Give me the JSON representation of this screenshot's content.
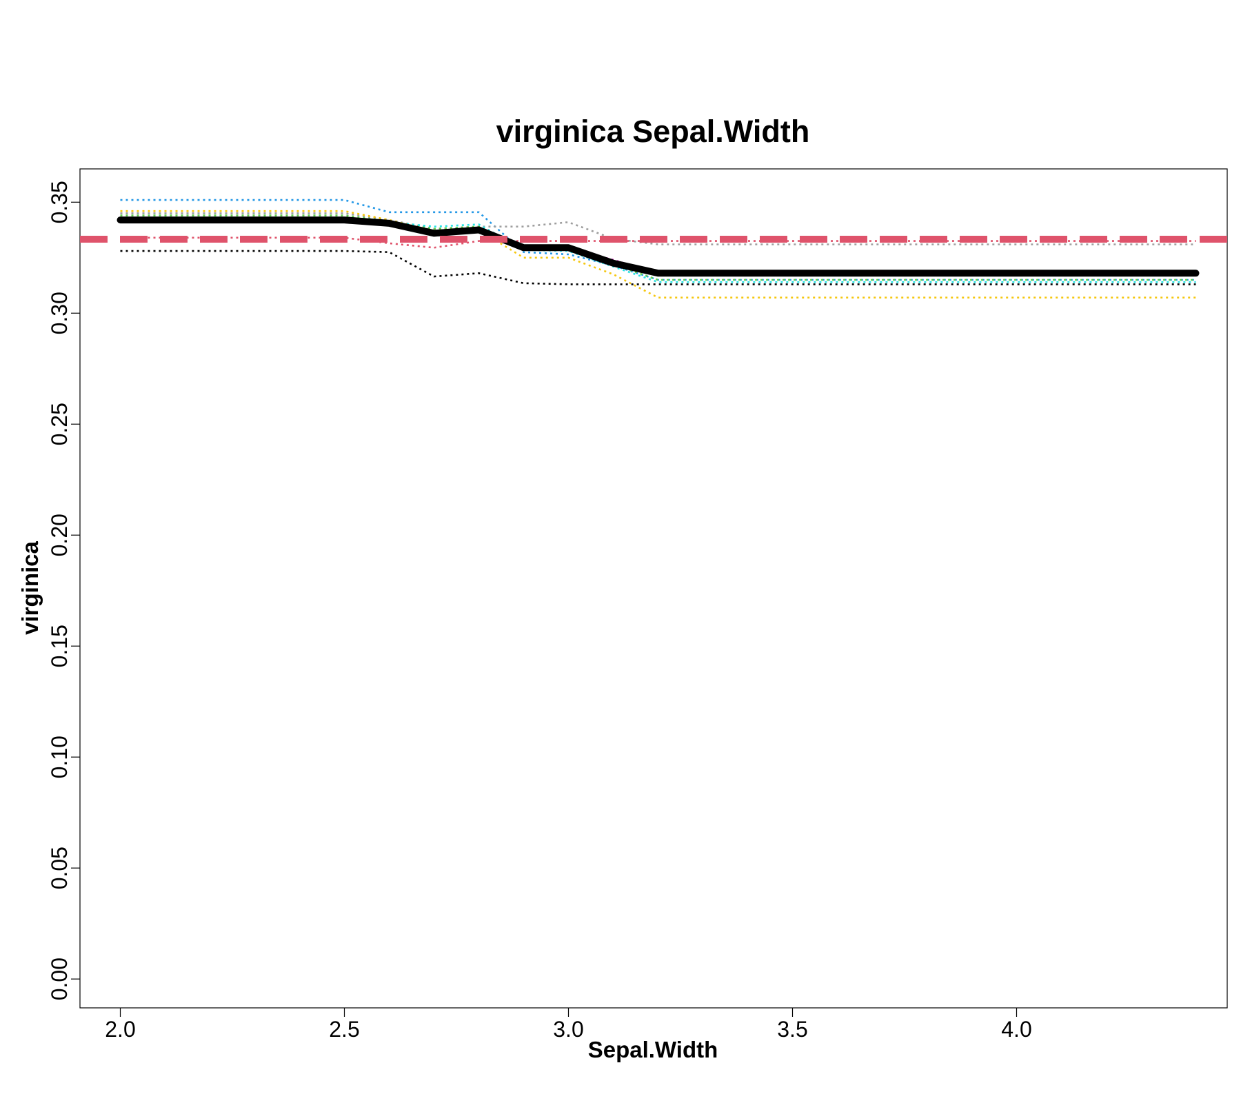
{
  "chart_data": {
    "type": "line",
    "title": "virginica  Sepal.Width",
    "xlabel": "Sepal.Width",
    "ylabel": "virginica",
    "xlim": [
      1.91,
      4.47
    ],
    "ylim": [
      -0.013,
      0.365
    ],
    "xticks": [
      {
        "value": 2.0,
        "label": "2.0"
      },
      {
        "value": 2.5,
        "label": "2.5"
      },
      {
        "value": 3.0,
        "label": "3.0"
      },
      {
        "value": 3.5,
        "label": "3.5"
      },
      {
        "value": 4.0,
        "label": "4.0"
      }
    ],
    "yticks": [
      {
        "value": 0.0,
        "label": "0.00"
      },
      {
        "value": 0.05,
        "label": "0.05"
      },
      {
        "value": 0.1,
        "label": "0.10"
      },
      {
        "value": 0.15,
        "label": "0.15"
      },
      {
        "value": 0.2,
        "label": "0.20"
      },
      {
        "value": 0.25,
        "label": "0.25"
      },
      {
        "value": 0.3,
        "label": "0.30"
      },
      {
        "value": 0.35,
        "label": "0.35"
      }
    ],
    "grid": false,
    "reference_lines": [
      {
        "y": 0.3333,
        "color": "#DF536B",
        "style": "dashed-thick"
      }
    ],
    "series": [
      {
        "color": "#2297E6",
        "style": "dotted",
        "x": [
          2.0,
          2.5,
          2.6,
          2.7,
          2.8,
          2.9,
          3.0,
          3.1,
          3.2,
          4.4
        ],
        "y": [
          0.351,
          0.351,
          0.3455,
          0.3455,
          0.3455,
          0.3275,
          0.3265,
          0.3215,
          0.315,
          0.315
        ]
      },
      {
        "color": "#9E9E9E",
        "style": "dotted",
        "x": [
          2.0,
          2.5,
          2.6,
          2.7,
          2.8,
          2.9,
          3.0,
          3.1,
          3.2,
          4.4
        ],
        "y": [
          0.345,
          0.345,
          0.342,
          0.338,
          0.339,
          0.339,
          0.341,
          0.3335,
          0.331,
          0.331
        ]
      },
      {
        "color": "#61D04F",
        "style": "dotted",
        "x": [
          2.0,
          2.5,
          2.6,
          2.7,
          2.8,
          2.9,
          3.0,
          3.1,
          3.2,
          4.4
        ],
        "y": [
          0.344,
          0.344,
          0.3415,
          0.338,
          0.339,
          0.33,
          0.329,
          0.322,
          0.315,
          0.315
        ]
      },
      {
        "color": "#F5C710",
        "style": "dotted",
        "x": [
          2.0,
          2.5,
          2.6,
          2.7,
          2.8,
          2.9,
          3.0,
          3.1,
          3.2,
          4.4
        ],
        "y": [
          0.346,
          0.346,
          0.342,
          0.337,
          0.3375,
          0.325,
          0.325,
          0.3175,
          0.307,
          0.307
        ]
      },
      {
        "color": "#28E2E5",
        "style": "dotted",
        "x": [
          2.0,
          2.5,
          2.6,
          2.7,
          2.8,
          2.9,
          3.0,
          3.1,
          3.2,
          4.4
        ],
        "y": [
          0.343,
          0.343,
          0.341,
          0.339,
          0.34,
          0.3285,
          0.328,
          0.321,
          0.314,
          0.314
        ]
      },
      {
        "color": "#CD0BBC",
        "style": "dotted",
        "x": [
          2.0,
          2.5,
          2.6,
          2.7,
          2.8,
          2.9,
          3.0,
          3.1,
          3.2,
          4.4
        ],
        "y": [
          0.342,
          0.342,
          0.3405,
          0.3365,
          0.337,
          0.33,
          0.3295,
          0.324,
          0.318,
          0.318
        ]
      },
      {
        "color": "#DF536B",
        "style": "dotted",
        "x": [
          2.0,
          2.5,
          2.6,
          2.7,
          2.8,
          2.9,
          3.0,
          3.1,
          3.2,
          4.4
        ],
        "y": [
          0.334,
          0.334,
          0.3315,
          0.3295,
          0.3325,
          0.3325,
          0.3325,
          0.3325,
          0.3325,
          0.3325
        ]
      },
      {
        "color": "#000000",
        "style": "dotted",
        "x": [
          2.0,
          2.5,
          2.6,
          2.7,
          2.8,
          2.9,
          3.0,
          3.1,
          3.2,
          4.4
        ],
        "y": [
          0.328,
          0.328,
          0.3275,
          0.3165,
          0.318,
          0.3135,
          0.313,
          0.313,
          0.313,
          0.313
        ]
      },
      {
        "color": "#000000",
        "style": "thick",
        "x": [
          2.0,
          2.5,
          2.6,
          2.7,
          2.8,
          2.9,
          3.0,
          3.1,
          3.2,
          4.4
        ],
        "y": [
          0.342,
          0.342,
          0.3405,
          0.336,
          0.3375,
          0.3295,
          0.3295,
          0.3225,
          0.318,
          0.318
        ]
      }
    ]
  }
}
